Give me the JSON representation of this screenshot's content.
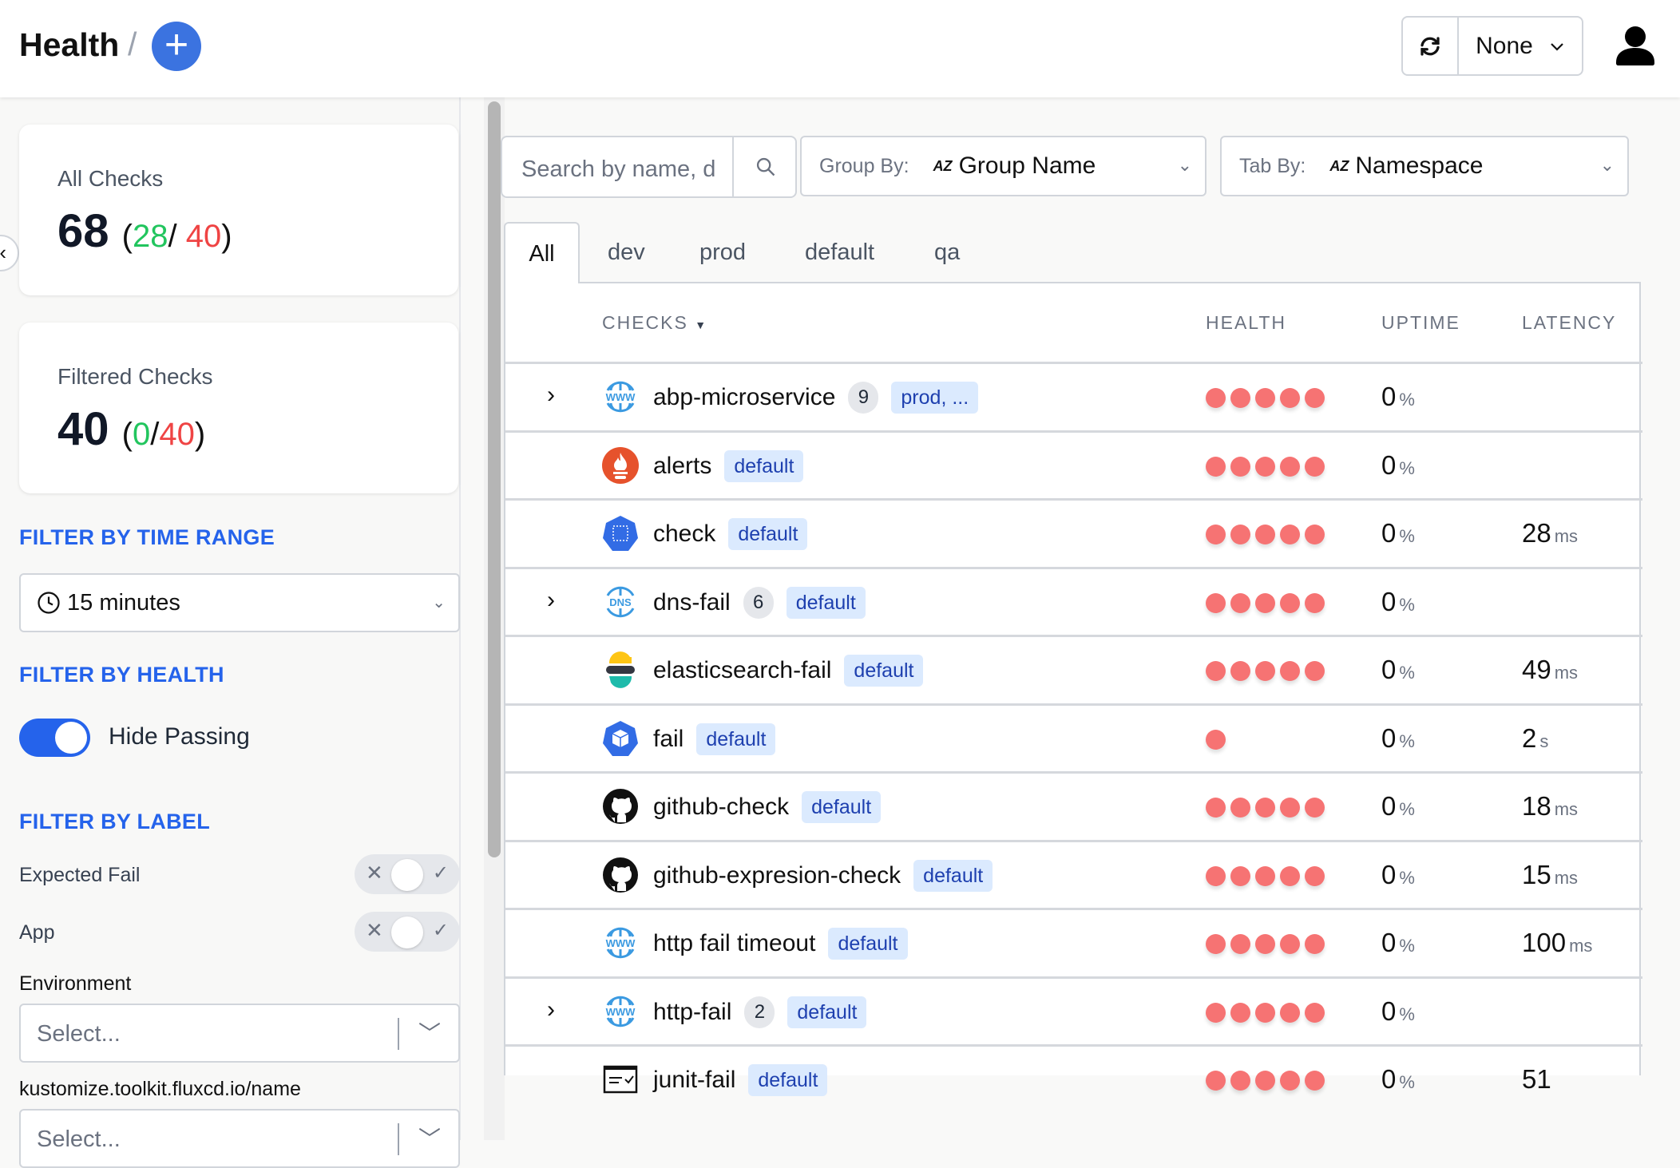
{
  "header": {
    "title": "Health",
    "separator": "/",
    "add_icon": "plus-icon",
    "refresh_icon": "refresh-icon",
    "refresh_interval": "None",
    "user_icon": "user-icon"
  },
  "sidebar": {
    "all_checks": {
      "label": "All Checks",
      "total": "68",
      "passing": "28",
      "failing": "40"
    },
    "filtered_checks": {
      "label": "Filtered Checks",
      "total": "40",
      "passing": "0",
      "failing": "40"
    },
    "time_range": {
      "heading": "FILTER BY TIME RANGE",
      "value": "15 minutes"
    },
    "health": {
      "heading": "FILTER BY HEALTH",
      "toggle_label": "Hide Passing",
      "toggle_on": true
    },
    "label": {
      "heading": "FILTER BY LABEL",
      "toggles": [
        {
          "label": "Expected Fail"
        },
        {
          "label": "App"
        }
      ],
      "selects": [
        {
          "label": "Environment",
          "placeholder": "Select..."
        },
        {
          "label": "kustomize.toolkit.fluxcd.io/name",
          "placeholder": "Select..."
        }
      ]
    }
  },
  "toolbar": {
    "search_placeholder": "Search by name, d",
    "group_by_label": "Group By:",
    "group_by_value": "Group Name",
    "tab_by_label": "Tab By:",
    "tab_by_value": "Namespace"
  },
  "tabs": [
    "All",
    "dev",
    "prod",
    "default",
    "qa"
  ],
  "active_tab": "All",
  "table": {
    "columns": [
      "CHECKS",
      "HEALTH",
      "UPTIME",
      "LATENCY"
    ],
    "rows": [
      {
        "name": "abp-microservice",
        "icon": "www",
        "count": "9",
        "tag": "prod, ...",
        "expandable": true,
        "health_dots": 5,
        "uptime": "0",
        "uptime_unit": "%",
        "latency": "",
        "latency_unit": ""
      },
      {
        "name": "alerts",
        "icon": "prometheus",
        "tag": "default",
        "health_dots": 5,
        "uptime": "0",
        "uptime_unit": "%",
        "latency": "",
        "latency_unit": ""
      },
      {
        "name": "check",
        "icon": "kubernetes",
        "tag": "default",
        "health_dots": 5,
        "uptime": "0",
        "uptime_unit": "%",
        "latency": "28",
        "latency_unit": "ms"
      },
      {
        "name": "dns-fail",
        "icon": "dns",
        "count": "6",
        "tag": "default",
        "expandable": true,
        "health_dots": 5,
        "uptime": "0",
        "uptime_unit": "%",
        "latency": "",
        "latency_unit": ""
      },
      {
        "name": "elasticsearch-fail",
        "icon": "elasticsearch",
        "tag": "default",
        "health_dots": 5,
        "uptime": "0",
        "uptime_unit": "%",
        "latency": "49",
        "latency_unit": "ms"
      },
      {
        "name": "fail",
        "icon": "kubernetes-cube",
        "tag": "default",
        "health_dots": 1,
        "uptime": "0",
        "uptime_unit": "%",
        "latency": "2",
        "latency_unit": "s"
      },
      {
        "name": "github-check",
        "icon": "github",
        "tag": "default",
        "health_dots": 5,
        "uptime": "0",
        "uptime_unit": "%",
        "latency": "18",
        "latency_unit": "ms"
      },
      {
        "name": "github-expresion-check",
        "icon": "github",
        "tag": "default",
        "health_dots": 5,
        "uptime": "0",
        "uptime_unit": "%",
        "latency": "15",
        "latency_unit": "ms"
      },
      {
        "name": "http fail timeout",
        "icon": "www",
        "tag": "default",
        "health_dots": 5,
        "uptime": "0",
        "uptime_unit": "%",
        "latency": "100",
        "latency_unit": "ms"
      },
      {
        "name": "http-fail",
        "icon": "www",
        "count": "2",
        "tag": "default",
        "expandable": true,
        "health_dots": 5,
        "uptime": "0",
        "uptime_unit": "%",
        "latency": "",
        "latency_unit": ""
      },
      {
        "name": "junit-fail",
        "icon": "junit",
        "tag": "default",
        "health_dots": 5,
        "uptime": "0",
        "uptime_unit": "%",
        "latency": "51",
        "latency_unit": ""
      }
    ]
  },
  "colors": {
    "accent": "#2563eb",
    "passing": "#22c55e",
    "failing": "#ef4444",
    "health_dot_fail": "#f67373",
    "tag_bg": "#dbeafe"
  }
}
